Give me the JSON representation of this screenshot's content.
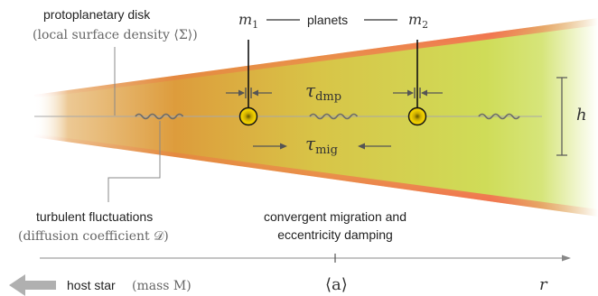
{
  "colors": {
    "disk_inner": "#dd9c3c",
    "disk_mid": "#d8c447",
    "disk_outer": "#d0e060",
    "disk_edge": "#f26a6a",
    "planet_fill": "#e8c200",
    "planet_core": "#7a6a00",
    "axis": "#777777",
    "star_arrow": "#b0b0b0"
  },
  "labels": {
    "disk_title": "protoplanetary disk",
    "disk_sub": "(local surface density ⟨Σ⟩)",
    "planets": "planets",
    "m1_base": "m",
    "m1_sub": "1",
    "m2_base": "m",
    "m2_sub": "2",
    "tau_base": "τ",
    "tau_dmp_sub": "dmp",
    "tau_mig_sub": "mig",
    "h": "h",
    "turb_title": "turbulent fluctuations",
    "turb_sub": "(diffusion coefficient 𝒟)",
    "conv_line1": "convergent migration and",
    "conv_line2": "eccentricity damping",
    "host_star_text": "host star",
    "host_star_mass": "(mass M)",
    "a_label": "⟨a⟩",
    "r_label": "r"
  },
  "icons": {
    "host_star_arrow": "left-arrow-icon"
  }
}
